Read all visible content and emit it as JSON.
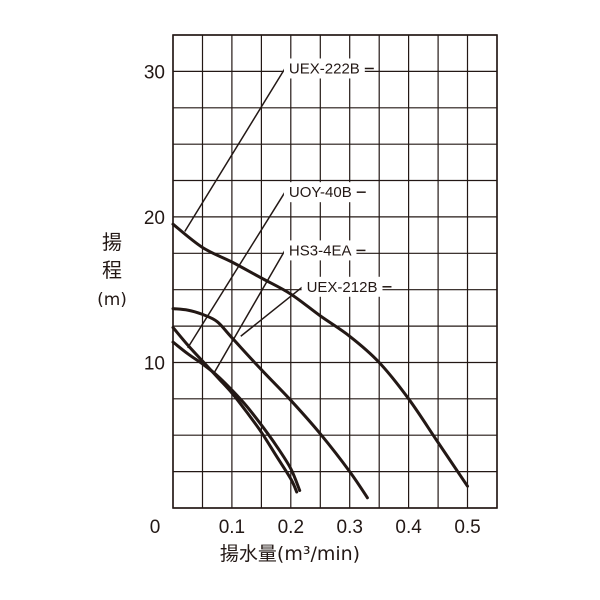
{
  "chart_data": {
    "type": "line",
    "ylabel_chars": [
      "揚",
      "程",
      "(m)"
    ],
    "xlabel": "揚水量(m³/min)",
    "x_ticks": [
      "0",
      "0.1",
      "0.2",
      "0.3",
      "0.4",
      "0.5"
    ],
    "y_ticks": [
      "10",
      "20",
      "30"
    ],
    "xlim": [
      0,
      0.55
    ],
    "ylim": [
      0,
      32.5
    ],
    "grid": true,
    "series": [
      {
        "name": "UEX-222B",
        "x": [
          0,
          0.05,
          0.1,
          0.15,
          0.2,
          0.25,
          0.3,
          0.35,
          0.4,
          0.45,
          0.5
        ],
        "y": [
          19.5,
          17.9,
          16.9,
          15.8,
          14.7,
          13.2,
          11.8,
          10.0,
          7.5,
          4.5,
          1.5
        ]
      },
      {
        "name": "UOY-40B",
        "x": [
          0,
          0.025,
          0.05,
          0.075,
          0.1,
          0.15,
          0.2,
          0.25,
          0.3,
          0.33
        ],
        "y": [
          13.7,
          13.6,
          13.3,
          12.8,
          11.7,
          9.5,
          7.4,
          5.1,
          2.5,
          0.7
        ]
      },
      {
        "name": "HS3-4EA",
        "x": [
          0,
          0.025,
          0.05,
          0.075,
          0.1,
          0.125,
          0.15,
          0.175,
          0.2,
          0.21
        ],
        "y": [
          12.4,
          11.2,
          10.1,
          9.0,
          7.9,
          6.6,
          5.2,
          3.6,
          2.0,
          1.1
        ]
      },
      {
        "name": "UEX-212B",
        "x": [
          0,
          0.025,
          0.05,
          0.075,
          0.1,
          0.125,
          0.15,
          0.175,
          0.2,
          0.215
        ],
        "y": [
          11.4,
          10.6,
          9.9,
          9.1,
          8.1,
          7.0,
          5.7,
          4.3,
          2.7,
          1.2
        ]
      }
    ],
    "annotations": [
      {
        "text": "UEX-222B",
        "series": "UEX-222B",
        "point": [
          0.02,
          19.0
        ],
        "label_at": [
          0.19,
          30.2
        ]
      },
      {
        "text": "UOY-40B",
        "series": "UOY-40B",
        "point": [
          0.025,
          11.0
        ],
        "label_at": [
          0.19,
          21.7
        ]
      },
      {
        "text": "HS3-4EA",
        "series": "HS3-4EA",
        "point": [
          0.07,
          9.3
        ],
        "label_at": [
          0.19,
          17.7
        ]
      },
      {
        "text": "UEX-212B",
        "series": "UEX-212B",
        "point": [
          0.115,
          11.8
        ],
        "label_at": [
          0.22,
          15.2
        ]
      }
    ]
  }
}
